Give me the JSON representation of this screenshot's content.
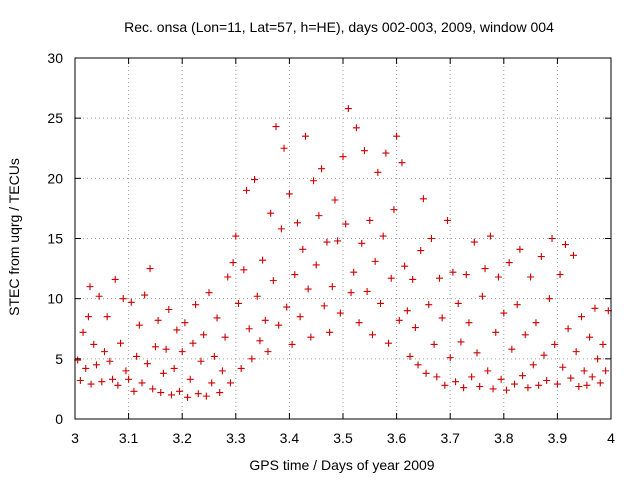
{
  "chart_data": {
    "type": "scatter",
    "title": "Rec. onsa (Lon=11, Lat=57, h=HE), days 002-003, 2009, window 004",
    "xlabel": "GPS time / Days of year 2009",
    "ylabel": "STEC from uqrg / TECUs",
    "xlim": [
      3,
      4
    ],
    "ylim": [
      0,
      30
    ],
    "xticks": [
      3,
      3.1,
      3.2,
      3.3,
      3.4,
      3.5,
      3.6,
      3.7,
      3.8,
      3.9,
      4
    ],
    "xtick_labels": [
      "3",
      "3.1",
      "3.2",
      "3.3",
      "3.4",
      "3.5",
      "3.6",
      "3.7",
      "3.8",
      "3.9",
      "4"
    ],
    "yticks": [
      0,
      5,
      10,
      15,
      20,
      25,
      30
    ],
    "ytick_labels": [
      "0",
      "5",
      "10",
      "15",
      "20",
      "25",
      "30"
    ],
    "grid": true,
    "marker": "+",
    "color": "#cc0000",
    "series": [
      {
        "name": "STEC",
        "points": [
          [
            3.005,
            4.9
          ],
          [
            3.01,
            3.2
          ],
          [
            3.015,
            7.2
          ],
          [
            3.02,
            4.2
          ],
          [
            3.025,
            8.5
          ],
          [
            3.028,
            11.0
          ],
          [
            3.03,
            2.9
          ],
          [
            3.035,
            6.2
          ],
          [
            3.04,
            4.5
          ],
          [
            3.045,
            10.2
          ],
          [
            3.05,
            3.1
          ],
          [
            3.055,
            5.6
          ],
          [
            3.06,
            8.5
          ],
          [
            3.065,
            4.8
          ],
          [
            3.07,
            3.3
          ],
          [
            3.075,
            11.6
          ],
          [
            3.08,
            2.8
          ],
          [
            3.085,
            6.3
          ],
          [
            3.09,
            10.0
          ],
          [
            3.095,
            4.0
          ],
          [
            3.1,
            3.3
          ],
          [
            3.105,
            9.7
          ],
          [
            3.11,
            2.3
          ],
          [
            3.115,
            5.2
          ],
          [
            3.12,
            7.8
          ],
          [
            3.125,
            3.0
          ],
          [
            3.13,
            10.3
          ],
          [
            3.135,
            4.6
          ],
          [
            3.14,
            12.5
          ],
          [
            3.145,
            2.5
          ],
          [
            3.15,
            6.0
          ],
          [
            3.155,
            8.2
          ],
          [
            3.16,
            2.2
          ],
          [
            3.165,
            3.8
          ],
          [
            3.17,
            5.8
          ],
          [
            3.175,
            9.1
          ],
          [
            3.18,
            2.0
          ],
          [
            3.185,
            4.2
          ],
          [
            3.19,
            7.4
          ],
          [
            3.195,
            2.3
          ],
          [
            3.2,
            5.6
          ],
          [
            3.205,
            8.0
          ],
          [
            3.21,
            1.8
          ],
          [
            3.215,
            3.3
          ],
          [
            3.22,
            6.3
          ],
          [
            3.225,
            9.5
          ],
          [
            3.23,
            2.1
          ],
          [
            3.235,
            4.8
          ],
          [
            3.24,
            7.0
          ],
          [
            3.245,
            1.9
          ],
          [
            3.25,
            10.5
          ],
          [
            3.255,
            3.0
          ],
          [
            3.26,
            5.2
          ],
          [
            3.265,
            8.4
          ],
          [
            3.27,
            2.2
          ],
          [
            3.275,
            4.0
          ],
          [
            3.28,
            6.8
          ],
          [
            3.285,
            11.8
          ],
          [
            3.29,
            3.0
          ],
          [
            3.295,
            13.0
          ],
          [
            3.3,
            15.2
          ],
          [
            3.305,
            9.6
          ],
          [
            3.31,
            4.2
          ],
          [
            3.315,
            12.4
          ],
          [
            3.32,
            19.0
          ],
          [
            3.325,
            7.5
          ],
          [
            3.33,
            5.0
          ],
          [
            3.335,
            19.9
          ],
          [
            3.34,
            10.2
          ],
          [
            3.345,
            6.5
          ],
          [
            3.35,
            13.2
          ],
          [
            3.355,
            8.2
          ],
          [
            3.36,
            5.6
          ],
          [
            3.365,
            17.1
          ],
          [
            3.37,
            11.5
          ],
          [
            3.375,
            24.3
          ],
          [
            3.38,
            7.8
          ],
          [
            3.385,
            15.8
          ],
          [
            3.39,
            22.5
          ],
          [
            3.395,
            9.3
          ],
          [
            3.4,
            18.7
          ],
          [
            3.405,
            6.2
          ],
          [
            3.41,
            12.0
          ],
          [
            3.415,
            16.3
          ],
          [
            3.42,
            8.5
          ],
          [
            3.425,
            14.1
          ],
          [
            3.43,
            23.5
          ],
          [
            3.435,
            10.8
          ],
          [
            3.44,
            6.8
          ],
          [
            3.445,
            19.8
          ],
          [
            3.45,
            12.8
          ],
          [
            3.455,
            16.9
          ],
          [
            3.46,
            20.8
          ],
          [
            3.465,
            9.4
          ],
          [
            3.47,
            14.7
          ],
          [
            3.475,
            7.2
          ],
          [
            3.48,
            11.0
          ],
          [
            3.485,
            18.2
          ],
          [
            3.49,
            14.8
          ],
          [
            3.495,
            8.8
          ],
          [
            3.5,
            21.8
          ],
          [
            3.505,
            16.2
          ],
          [
            3.51,
            25.8
          ],
          [
            3.515,
            10.5
          ],
          [
            3.52,
            12.2
          ],
          [
            3.525,
            24.2
          ],
          [
            3.53,
            8.0
          ],
          [
            3.535,
            14.6
          ],
          [
            3.54,
            22.3
          ],
          [
            3.545,
            10.6
          ],
          [
            3.55,
            16.5
          ],
          [
            3.555,
            7.0
          ],
          [
            3.56,
            13.1
          ],
          [
            3.565,
            20.5
          ],
          [
            3.57,
            9.6
          ],
          [
            3.575,
            15.2
          ],
          [
            3.58,
            22.1
          ],
          [
            3.585,
            6.3
          ],
          [
            3.59,
            11.7
          ],
          [
            3.595,
            17.4
          ],
          [
            3.6,
            23.5
          ],
          [
            3.605,
            8.2
          ],
          [
            3.61,
            21.3
          ],
          [
            3.615,
            12.7
          ],
          [
            3.62,
            9.0
          ],
          [
            3.625,
            5.2
          ],
          [
            3.63,
            11.6
          ],
          [
            3.635,
            7.6
          ],
          [
            3.64,
            4.5
          ],
          [
            3.645,
            14.0
          ],
          [
            3.65,
            18.3
          ],
          [
            3.655,
            3.8
          ],
          [
            3.66,
            9.5
          ],
          [
            3.665,
            15.0
          ],
          [
            3.67,
            6.2
          ],
          [
            3.675,
            3.5
          ],
          [
            3.68,
            11.7
          ],
          [
            3.685,
            8.4
          ],
          [
            3.69,
            2.8
          ],
          [
            3.695,
            16.5
          ],
          [
            3.7,
            5.1
          ],
          [
            3.705,
            12.2
          ],
          [
            3.71,
            3.1
          ],
          [
            3.715,
            9.6
          ],
          [
            3.72,
            6.4
          ],
          [
            3.725,
            2.6
          ],
          [
            3.73,
            12.0
          ],
          [
            3.735,
            8.0
          ],
          [
            3.74,
            3.5
          ],
          [
            3.745,
            14.7
          ],
          [
            3.75,
            5.5
          ],
          [
            3.755,
            2.7
          ],
          [
            3.76,
            10.2
          ],
          [
            3.765,
            12.5
          ],
          [
            3.77,
            4.0
          ],
          [
            3.775,
            15.2
          ],
          [
            3.78,
            2.5
          ],
          [
            3.785,
            7.2
          ],
          [
            3.79,
            11.8
          ],
          [
            3.795,
            3.3
          ],
          [
            3.8,
            8.8
          ],
          [
            3.805,
            2.4
          ],
          [
            3.81,
            13.0
          ],
          [
            3.815,
            5.8
          ],
          [
            3.82,
            2.9
          ],
          [
            3.825,
            9.5
          ],
          [
            3.83,
            14.1
          ],
          [
            3.835,
            3.6
          ],
          [
            3.84,
            7.0
          ],
          [
            3.845,
            2.6
          ],
          [
            3.85,
            11.8
          ],
          [
            3.855,
            4.5
          ],
          [
            3.86,
            8.0
          ],
          [
            3.865,
            2.8
          ],
          [
            3.87,
            13.5
          ],
          [
            3.875,
            5.3
          ],
          [
            3.88,
            3.2
          ],
          [
            3.885,
            10.0
          ],
          [
            3.89,
            15.0
          ],
          [
            3.895,
            6.2
          ],
          [
            3.9,
            2.9
          ],
          [
            3.905,
            12.0
          ],
          [
            3.91,
            4.3
          ],
          [
            3.915,
            14.5
          ],
          [
            3.92,
            7.5
          ],
          [
            3.925,
            3.4
          ],
          [
            3.93,
            13.6
          ],
          [
            3.935,
            5.6
          ],
          [
            3.94,
            2.7
          ],
          [
            3.945,
            8.5
          ],
          [
            3.95,
            4.0
          ],
          [
            3.955,
            2.8
          ],
          [
            3.96,
            6.8
          ],
          [
            3.965,
            3.5
          ],
          [
            3.97,
            9.2
          ],
          [
            3.975,
            5.0
          ],
          [
            3.98,
            3.0
          ],
          [
            3.985,
            6.2
          ],
          [
            3.99,
            4.0
          ],
          [
            3.995,
            9.0
          ]
        ]
      }
    ]
  }
}
